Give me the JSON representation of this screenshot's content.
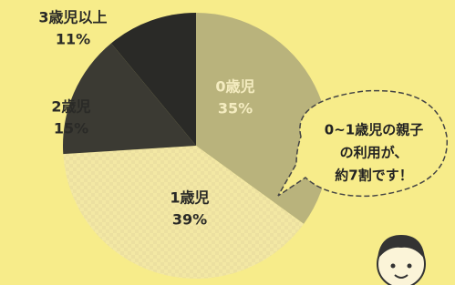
{
  "chart_data": {
    "type": "pie",
    "categories": [
      "0歳児",
      "1歳児",
      "2歳児",
      "3歳児以上"
    ],
    "values": [
      35,
      39,
      15,
      11
    ],
    "value_labels": [
      "35%",
      "39%",
      "15%",
      "11%"
    ],
    "colors": [
      "#b9b37c",
      "#f3e8a4",
      "#3b3a33",
      "#2a2a27"
    ],
    "annotation": [
      "0~1歳児の親子",
      "の利用が、",
      "約7割です！"
    ]
  }
}
